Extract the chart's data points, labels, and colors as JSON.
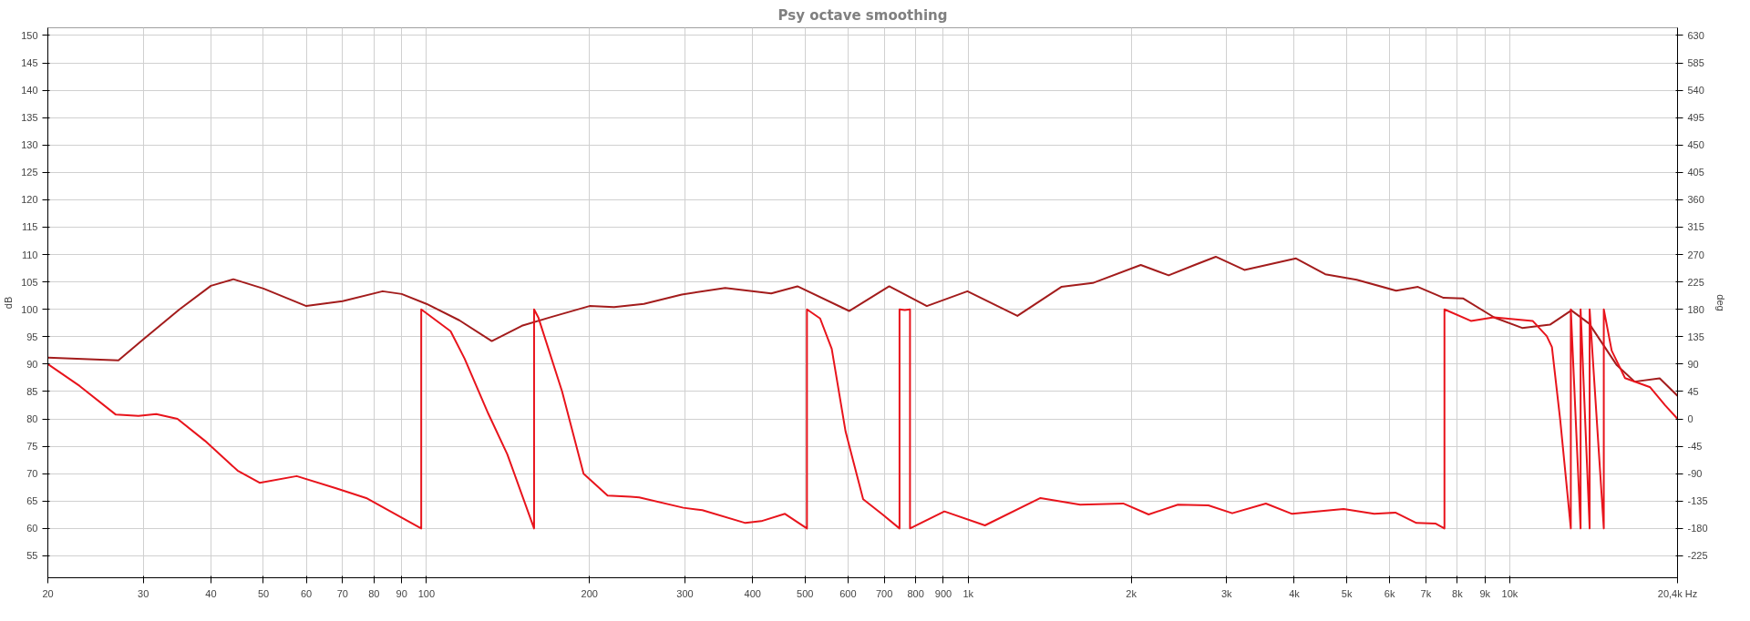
{
  "chart_data": {
    "type": "line",
    "title": "Psy octave smoothing",
    "ylabel": "dB",
    "y2label": "deg",
    "log": "x",
    "grid": true,
    "marker": "none",
    "line_style": "solid",
    "xlim": [
      20,
      20400
    ],
    "xticks": [
      20,
      30,
      40,
      50,
      60,
      70,
      80,
      90,
      100,
      200,
      300,
      400,
      500,
      600,
      700,
      800,
      900,
      {
        "value": 1000,
        "label": "1k"
      },
      {
        "value": 2000,
        "label": "2k"
      },
      {
        "value": 3000,
        "label": "3k"
      },
      {
        "value": 4000,
        "label": "4k"
      },
      {
        "value": 5000,
        "label": "5k"
      },
      {
        "value": 6000,
        "label": "6k"
      },
      {
        "value": 7000,
        "label": "7k"
      },
      {
        "value": 8000,
        "label": "8k"
      },
      {
        "value": 9000,
        "label": "9k"
      },
      {
        "value": 10000,
        "label": "10k"
      },
      {
        "value": 20400,
        "label": "20,4k Hz"
      }
    ],
    "ylim": [
      51,
      151.4
    ],
    "yticks": [
      55,
      60,
      65,
      70,
      75,
      80,
      85,
      90,
      95,
      100,
      105,
      110,
      115,
      120,
      125,
      130,
      135,
      140,
      145,
      150
    ],
    "y2lim": [
      -261,
      642.6
    ],
    "y2ticks": [
      -225,
      -180,
      -135,
      -90,
      -45,
      0,
      45,
      90,
      135,
      180,
      225,
      270,
      315,
      360,
      405,
      450,
      495,
      540,
      585,
      630
    ],
    "series": [
      {
        "color": "#a31c1c",
        "x": [
          20,
          25,
          27,
          30,
          35,
          40,
          44,
          50,
          60,
          70,
          83,
          90,
          100,
          115,
          132,
          150,
          170,
          200,
          222,
          252,
          296,
          356,
          433,
          484,
          603,
          715,
          839,
          997,
          1233,
          1486,
          1698,
          2083,
          2345,
          2619,
          2865,
          3236,
          4030,
          4564,
          5216,
          6168,
          6766,
          7546,
          8193,
          9367,
          10540,
          11860,
          12990,
          14010,
          15760,
          17000,
          18910,
          20400
        ],
        "values": [
          91.2,
          90.8,
          90.7,
          94.5,
          100,
          104.3,
          105.5,
          103.8,
          100.6,
          101.5,
          103.3,
          102.8,
          101,
          98,
          94.2,
          97,
          98.6,
          100.6,
          100.4,
          101,
          102.7,
          103.9,
          102.9,
          104.2,
          99.7,
          104.2,
          100.6,
          103.3,
          98.8,
          104.1,
          104.8,
          108.1,
          106.2,
          108.1,
          109.6,
          107.2,
          109.3,
          106.4,
          105.4,
          103.4,
          104.1,
          102.1,
          102,
          98.5,
          96.6,
          97.2,
          99.8,
          97.4,
          89.8,
          86.8,
          87.4,
          84.2
        ]
      },
      {
        "color": "#e8141c",
        "axis": "y2",
        "x": [
          20,
          22.9,
          26.7,
          29.4,
          31.7,
          34.7,
          39,
          44.8,
          49.2,
          57.6,
          68.1,
          77.4,
          97.8,
          97.8,
          110.8,
          117.6,
          130,
          141,
          158,
          158,
          161,
          178,
          195,
          216,
          238,
          247,
          298,
          323,
          388,
          415,
          459,
          504,
          504,
          533,
          560,
          594,
          640,
          695,
          747,
          747,
          764,
          781,
          781,
          904,
          1074,
          1360,
          1610,
          1933,
          2154,
          2439,
          2777,
          3073,
          3545,
          3963,
          4933,
          5620,
          6147,
          6722,
          7300,
          7574,
          7574,
          8475,
          9340,
          11020,
          11700,
          11960,
          12390,
          12960,
          12960,
          13510,
          13510,
          14040,
          14040,
          14910,
          14910,
          15420,
          16320,
          18160,
          19370,
          20400
        ],
        "values": [
          90,
          54,
          7,
          5,
          8,
          0,
          -36,
          -85,
          -105,
          -94,
          -114,
          -130,
          -180,
          180,
          144,
          99,
          9,
          -58,
          -180,
          180,
          166,
          45,
          -90,
          -126,
          -128,
          -129,
          -146,
          -150,
          -171,
          -168,
          -156,
          -180,
          180,
          165,
          115,
          -21,
          -132,
          -157,
          -180,
          180,
          179,
          180,
          -180,
          -152,
          -175,
          -130,
          -141,
          -139,
          -157,
          -141,
          -142,
          -155,
          -139,
          -156,
          -148,
          -156,
          -154,
          -171,
          -172,
          -180,
          180,
          161,
          167,
          161,
          136,
          118,
          -2,
          -180,
          180,
          -180,
          180,
          -180,
          180,
          -180,
          180,
          112,
          67,
          52,
          22,
          0
        ]
      }
    ]
  }
}
